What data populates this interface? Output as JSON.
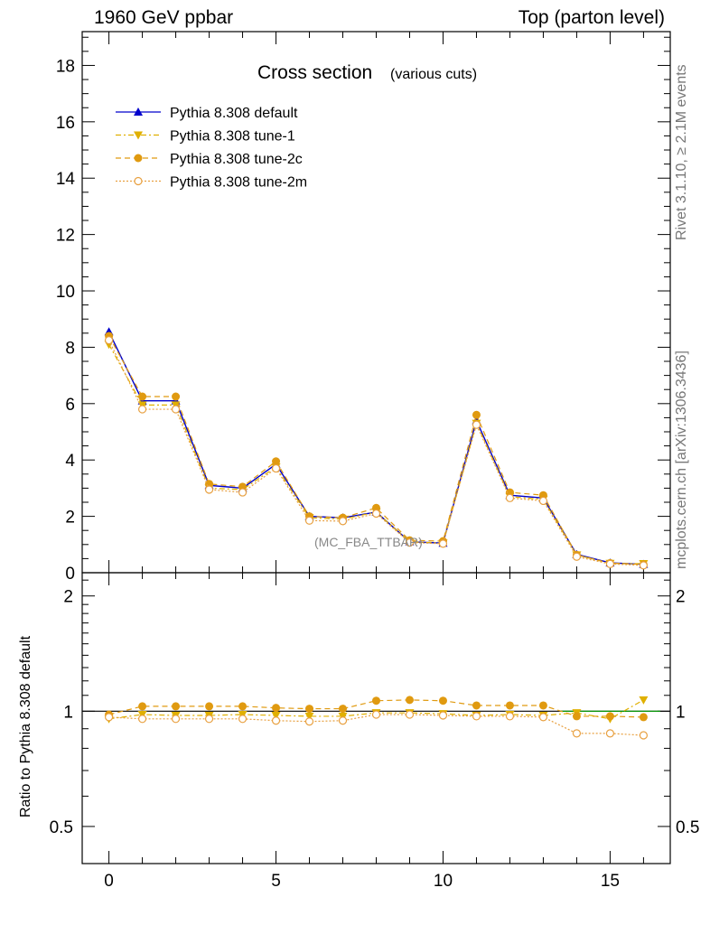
{
  "header": {
    "left": "1960 GeV ppbar",
    "right": "Top (parton level)"
  },
  "side_labels": {
    "top": "Rivet 3.1.10, ≥ 2.1M events",
    "bottom": "mcplots.cern.ch [arXiv:1306.3436]"
  },
  "main_title": "Cross section",
  "main_subtitle": "(various cuts)",
  "watermark": "(MC_FBA_TTBAR)",
  "ratio_ylabel": "Ratio to Pythia 8.308 default",
  "colors": {
    "default": "#0000cc",
    "tune1": "#e0b000",
    "tune2c": "#e09a10",
    "tune2m": "#e8a040",
    "ref_line": "#00a000"
  },
  "chart_data": [
    {
      "type": "line",
      "title": "Cross section",
      "subtitle": "(various cuts)",
      "xlim": [
        -0.8,
        16.8
      ],
      "ylim": [
        0,
        19.2
      ],
      "yticks": [
        0,
        2,
        4,
        6,
        8,
        10,
        12,
        14,
        16,
        18
      ],
      "legend_position": "top-left",
      "grid": false,
      "x": [
        0,
        1,
        2,
        3,
        4,
        5,
        6,
        7,
        8,
        9,
        10,
        11,
        12,
        13,
        14,
        15,
        16
      ],
      "series": [
        {
          "name": "Pythia 8.308 default",
          "marker": "triangle-up",
          "line": "solid",
          "color": "#0000cc",
          "values": [
            8.55,
            6.1,
            6.1,
            3.1,
            3.0,
            3.85,
            2.0,
            1.95,
            2.15,
            1.1,
            1.05,
            5.4,
            2.75,
            2.65,
            0.65,
            0.35,
            0.3
          ]
        },
        {
          "name": "Pythia 8.308 tune-1",
          "marker": "triangle-down",
          "line": "dashdot",
          "color": "#e0b000",
          "values": [
            8.1,
            5.95,
            5.95,
            3.0,
            2.95,
            3.75,
            1.95,
            1.9,
            2.15,
            1.1,
            1.05,
            5.3,
            2.7,
            2.6,
            0.63,
            0.33,
            0.32
          ]
        },
        {
          "name": "Pythia 8.308 tune-2c",
          "marker": "circle-filled",
          "line": "dashed",
          "color": "#e09a10",
          "values": [
            8.4,
            6.25,
            6.25,
            3.15,
            3.05,
            3.95,
            2.0,
            1.95,
            2.3,
            1.15,
            1.12,
            5.6,
            2.85,
            2.75,
            0.63,
            0.34,
            0.29
          ]
        },
        {
          "name": "Pythia 8.308 tune-2m",
          "marker": "circle-open",
          "line": "dotted",
          "color": "#e8a040",
          "values": [
            8.25,
            5.8,
            5.8,
            2.95,
            2.85,
            3.7,
            1.85,
            1.83,
            2.1,
            1.07,
            1.03,
            5.25,
            2.65,
            2.55,
            0.57,
            0.31,
            0.26
          ]
        }
      ]
    },
    {
      "type": "line",
      "ylabel": "Ratio to Pythia 8.308 default",
      "xlim": [
        -0.8,
        16.8
      ],
      "ylim": [
        0.4,
        2.3
      ],
      "yscale": "log",
      "yticks": [
        0.5,
        1,
        2
      ],
      "xticks": [
        0,
        5,
        10,
        15
      ],
      "x": [
        0,
        1,
        2,
        3,
        4,
        5,
        6,
        7,
        8,
        9,
        10,
        11,
        12,
        13,
        14,
        15,
        16
      ],
      "reference": 1,
      "series": [
        {
          "name": "Pythia 8.308 tune-1",
          "marker": "triangle-down",
          "line": "dashdot",
          "color": "#e0b000",
          "values": [
            0.955,
            0.98,
            0.975,
            0.975,
            0.98,
            0.975,
            0.97,
            0.97,
            0.99,
            0.99,
            0.985,
            0.975,
            0.98,
            0.975,
            0.99,
            0.955,
            1.07
          ]
        },
        {
          "name": "Pythia 8.308 tune-2c",
          "marker": "circle-filled",
          "line": "dashed",
          "color": "#e09a10",
          "values": [
            0.98,
            1.03,
            1.03,
            1.03,
            1.03,
            1.02,
            1.015,
            1.015,
            1.065,
            1.07,
            1.065,
            1.035,
            1.035,
            1.035,
            0.97,
            0.97,
            0.965
          ]
        },
        {
          "name": "Pythia 8.308 tune-2m",
          "marker": "circle-open",
          "line": "dotted",
          "color": "#e8a040",
          "values": [
            0.965,
            0.955,
            0.955,
            0.955,
            0.955,
            0.945,
            0.94,
            0.945,
            0.98,
            0.98,
            0.975,
            0.97,
            0.97,
            0.965,
            0.875,
            0.875,
            0.865
          ]
        }
      ]
    }
  ]
}
